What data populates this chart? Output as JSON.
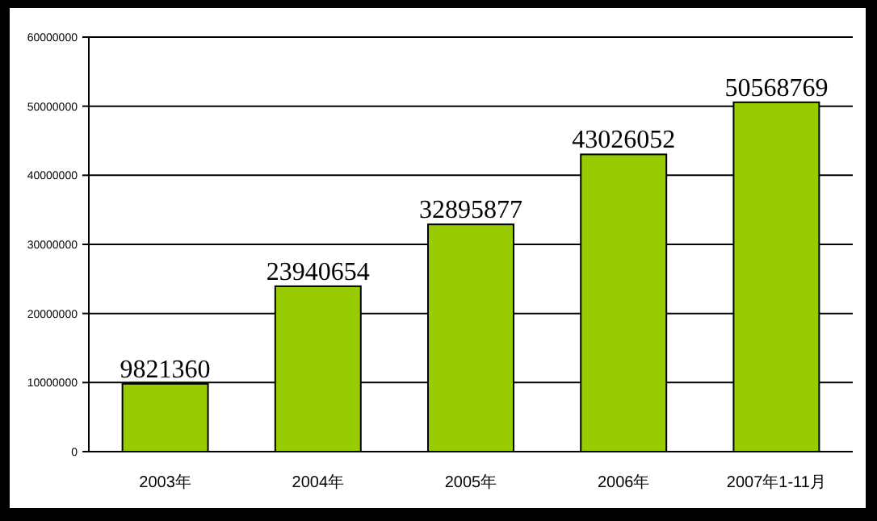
{
  "chart_data": {
    "type": "bar",
    "categories": [
      "2003年",
      "2004年",
      "2005年",
      "2006年",
      "2007年1-11月"
    ],
    "values": [
      9821360,
      23940654,
      32895877,
      43026052,
      50568769
    ],
    "color": "#99cc00",
    "data_labels": true,
    "ylim": [
      0,
      60000000
    ],
    "yticks": [
      0,
      10000000,
      20000000,
      30000000,
      40000000,
      50000000,
      60000000
    ],
    "grid": "y"
  }
}
